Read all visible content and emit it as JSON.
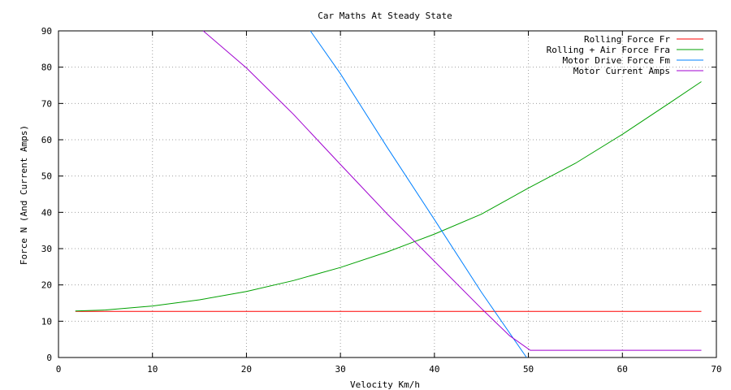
{
  "chart_data": {
    "type": "line",
    "title": "Car Maths At Steady State",
    "xlabel": "Velocity Km/h",
    "ylabel": "Force N (And Current Amps)",
    "xlim": [
      0,
      70
    ],
    "ylim": [
      0,
      90
    ],
    "xticks": [
      "0",
      "10",
      "20",
      "30",
      "40",
      "50",
      "60",
      "70"
    ],
    "yticks": [
      "0",
      "10",
      "20",
      "30",
      "40",
      "50",
      "60",
      "70",
      "80",
      "90"
    ],
    "grid": true,
    "legend_position": "top-right",
    "series": [
      {
        "name": "Rolling Force Fr",
        "color": "#ff0000",
        "x": [
          1.8,
          68.4
        ],
        "y": [
          12.7,
          12.7
        ]
      },
      {
        "name": "Rolling + Air Force Fra",
        "color": "#00a000",
        "x": [
          1.8,
          5,
          10,
          15,
          20,
          25,
          30,
          35,
          40,
          45,
          50,
          55,
          60,
          65,
          68.4
        ],
        "y": [
          12.8,
          13.1,
          14.2,
          15.9,
          18.2,
          21.2,
          24.8,
          29.1,
          34.0,
          39.5,
          46.7,
          53.5,
          61.5,
          70.1,
          76.0
        ]
      },
      {
        "name": "Motor Drive Force Fm",
        "color": "#0080ff",
        "x": [
          26.8,
          30,
          35,
          40,
          45,
          49.8
        ],
        "y": [
          90,
          78.2,
          57.8,
          38.0,
          18.0,
          0
        ]
      },
      {
        "name": "Motor Current Amps",
        "color": "#a000d0",
        "x": [
          15.4,
          20,
          25,
          30,
          35,
          40,
          45,
          48,
          50.2,
          68.4
        ],
        "y": [
          90,
          79.8,
          67.0,
          53.2,
          39.5,
          26.5,
          13.5,
          6.0,
          2.0,
          2.0
        ]
      }
    ]
  }
}
